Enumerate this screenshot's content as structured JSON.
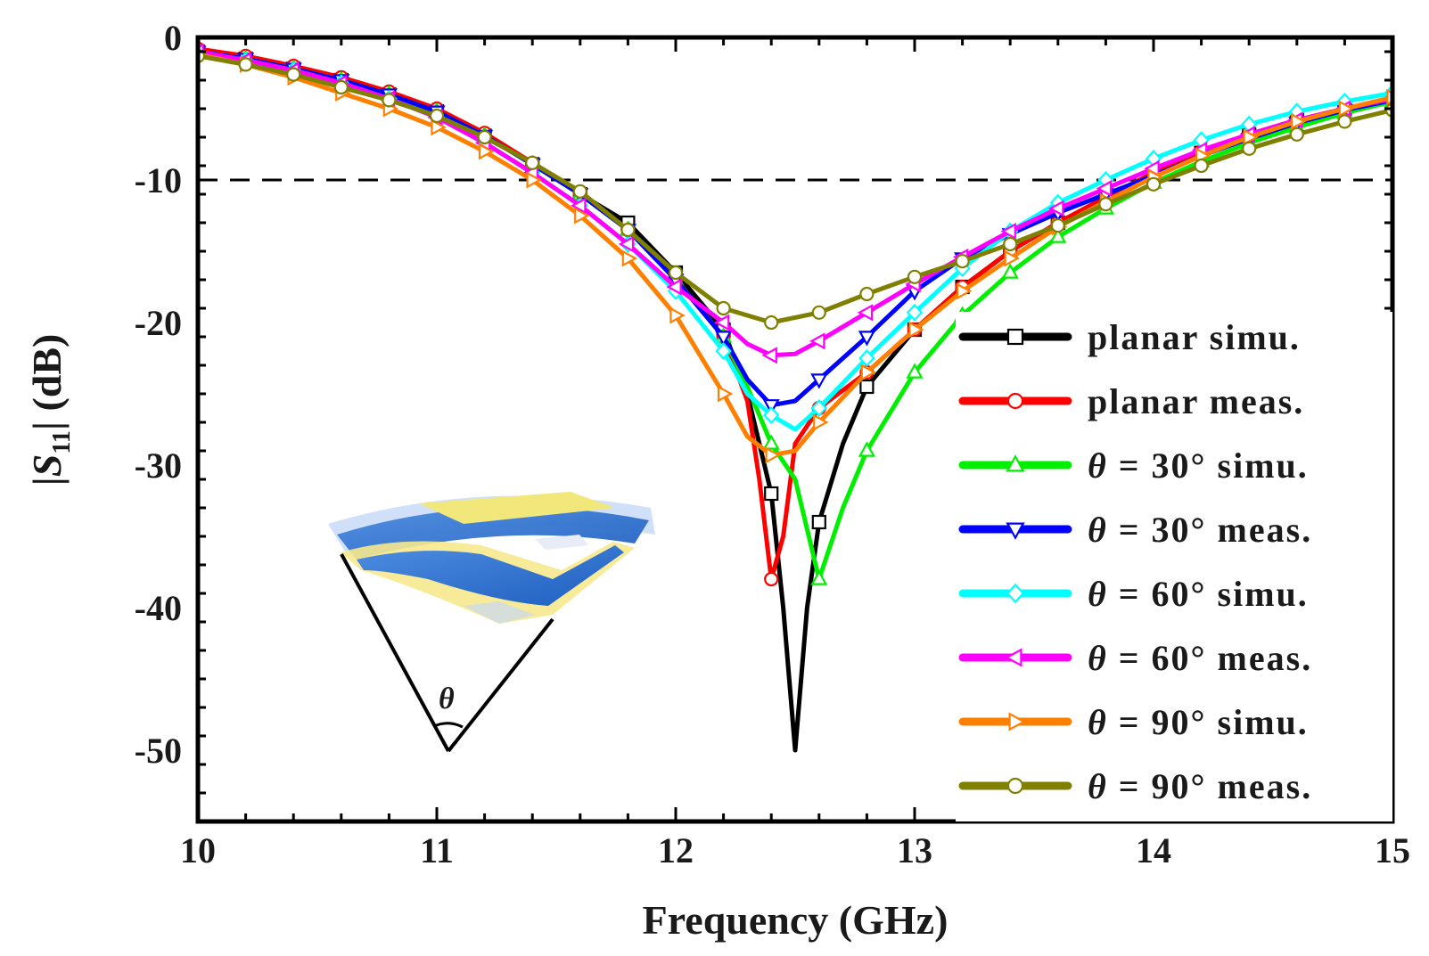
{
  "chart_data": {
    "type": "line",
    "xlabel": "Frequency (GHz)",
    "ylabel": {
      "prefix": "|",
      "var": "S",
      "sub": "11",
      "suffix": "| (dB)"
    },
    "xlim": [
      10,
      15
    ],
    "ylim": [
      -55,
      0
    ],
    "xticks": [
      10,
      11,
      12,
      13,
      14,
      15
    ],
    "yticks": [
      0,
      -10,
      -20,
      -30,
      -40,
      -50
    ],
    "xtick_labels": [
      "10",
      "11",
      "12",
      "13",
      "14",
      "15"
    ],
    "ytick_labels": [
      "0",
      "-10",
      "-20",
      "-30",
      "-40",
      "-50"
    ],
    "reference_line": {
      "y": -10,
      "style": "dashed"
    },
    "inset": {
      "description": "curved antenna illustration",
      "angle_label": "θ"
    },
    "series": [
      {
        "name": "planar simu.",
        "theta": "",
        "suffix": "planar simu.",
        "color": "#000000",
        "marker": "square",
        "x": [
          10,
          10.2,
          10.4,
          10.6,
          10.8,
          11,
          11.2,
          11.4,
          11.6,
          11.8,
          12,
          12.2,
          12.3,
          12.4,
          12.45,
          12.5,
          12.55,
          12.6,
          12.7,
          12.8,
          13,
          13.2,
          13.4,
          13.6,
          13.8,
          14,
          14.2,
          14.4,
          14.6,
          14.8,
          15
        ],
        "y": [
          -1.0,
          -1.5,
          -2.2,
          -3.0,
          -4.0,
          -5.2,
          -6.9,
          -8.9,
          -11.0,
          -13.0,
          -16.5,
          -20.5,
          -25.0,
          -32.0,
          -40.0,
          -50.0,
          -40.0,
          -34.0,
          -28.5,
          -24.5,
          -20.5,
          -17.5,
          -15.0,
          -13.0,
          -11.3,
          -9.6,
          -8.1,
          -6.8,
          -5.8,
          -5.0,
          -4.3
        ]
      },
      {
        "name": "planar meas.",
        "theta": "",
        "suffix": "planar meas.",
        "color": "#ff0000",
        "marker": "circle",
        "x": [
          10,
          10.2,
          10.4,
          10.6,
          10.8,
          11,
          11.2,
          11.4,
          11.6,
          11.8,
          12,
          12.2,
          12.3,
          12.35,
          12.4,
          12.45,
          12.5,
          12.6,
          12.8,
          13,
          13.2,
          13.4,
          13.6,
          13.8,
          14,
          14.2,
          14.4,
          14.6,
          14.8,
          15
        ],
        "y": [
          -0.8,
          -1.3,
          -2.0,
          -2.8,
          -3.8,
          -5.0,
          -6.7,
          -8.8,
          -11.0,
          -13.5,
          -17.0,
          -21.0,
          -25.5,
          -31.0,
          -38.0,
          -35.0,
          -28.5,
          -26.0,
          -23.5,
          -20.5,
          -17.5,
          -15.0,
          -13.0,
          -11.2,
          -9.5,
          -8.0,
          -6.9,
          -5.9,
          -5.0,
          -4.3
        ]
      },
      {
        "name": "θ = 30° simu.",
        "theta": "θ",
        "suffix": " = 30° simu.",
        "color": "#00ee00",
        "marker": "triangle-up",
        "x": [
          10,
          10.2,
          10.4,
          10.6,
          10.8,
          11,
          11.2,
          11.4,
          11.6,
          11.8,
          12,
          12.2,
          12.3,
          12.4,
          12.5,
          12.6,
          12.7,
          12.8,
          13,
          13.2,
          13.4,
          13.6,
          13.8,
          14,
          14.2,
          14.4,
          14.6,
          14.8,
          15
        ],
        "y": [
          -1.0,
          -1.5,
          -2.2,
          -3.0,
          -4.0,
          -5.2,
          -6.9,
          -8.9,
          -11.0,
          -13.5,
          -17.0,
          -21.0,
          -24.5,
          -28.5,
          -31.0,
          -38.0,
          -33.0,
          -29.0,
          -23.5,
          -19.5,
          -16.5,
          -14.0,
          -12.0,
          -10.2,
          -8.7,
          -7.4,
          -6.3,
          -5.3,
          -4.5
        ]
      },
      {
        "name": "θ = 30° meas.",
        "theta": "θ",
        "suffix": " = 30° meas.",
        "color": "#0000ff",
        "marker": "triangle-down",
        "x": [
          10,
          10.2,
          10.4,
          10.6,
          10.8,
          11,
          11.2,
          11.4,
          11.6,
          11.8,
          12,
          12.2,
          12.3,
          12.4,
          12.5,
          12.6,
          12.8,
          13,
          13.2,
          13.4,
          13.6,
          13.8,
          14,
          14.2,
          14.4,
          14.6,
          14.8,
          15
        ],
        "y": [
          -1.0,
          -1.5,
          -2.2,
          -3.0,
          -4.0,
          -5.2,
          -6.9,
          -8.9,
          -11.0,
          -13.5,
          -17.0,
          -21.0,
          -24.0,
          -25.8,
          -25.5,
          -24.0,
          -21.0,
          -17.8,
          -15.5,
          -13.8,
          -12.3,
          -11.0,
          -9.7,
          -8.3,
          -7.1,
          -6.0,
          -5.1,
          -4.4
        ]
      },
      {
        "name": "θ = 60° simu.",
        "theta": "θ",
        "suffix": " = 60° simu.",
        "color": "#00ffff",
        "marker": "diamond",
        "x": [
          10,
          10.2,
          10.4,
          10.6,
          10.8,
          11,
          11.2,
          11.4,
          11.6,
          11.8,
          12,
          12.2,
          12.3,
          12.4,
          12.5,
          12.6,
          12.8,
          13,
          13.2,
          13.4,
          13.6,
          13.8,
          14,
          14.2,
          14.4,
          14.6,
          14.8,
          15
        ],
        "y": [
          -1.0,
          -1.6,
          -2.3,
          -3.2,
          -4.3,
          -5.6,
          -7.4,
          -9.5,
          -11.8,
          -14.5,
          -17.8,
          -22.0,
          -25.0,
          -26.5,
          -27.5,
          -26.0,
          -22.5,
          -19.3,
          -16.2,
          -13.6,
          -11.6,
          -10.0,
          -8.5,
          -7.2,
          -6.1,
          -5.2,
          -4.5,
          -3.9
        ]
      },
      {
        "name": "θ = 60° meas.",
        "theta": "θ",
        "suffix": " = 60° meas.",
        "color": "#ff00ff",
        "marker": "triangle-left",
        "x": [
          10,
          10.2,
          10.4,
          10.6,
          10.8,
          11,
          11.2,
          11.4,
          11.6,
          11.8,
          12,
          12.2,
          12.3,
          12.4,
          12.5,
          12.6,
          12.8,
          13,
          13.2,
          13.4,
          13.6,
          13.8,
          14,
          14.2,
          14.4,
          14.6,
          14.8,
          15
        ],
        "y": [
          -1.0,
          -1.6,
          -2.3,
          -3.2,
          -4.3,
          -5.6,
          -7.4,
          -9.5,
          -11.8,
          -14.5,
          -17.5,
          -20.0,
          -21.5,
          -22.3,
          -22.2,
          -21.3,
          -19.3,
          -17.3,
          -15.4,
          -13.6,
          -12.0,
          -10.6,
          -9.2,
          -7.9,
          -6.8,
          -5.8,
          -5.0,
          -4.3
        ]
      },
      {
        "name": "θ = 90° simu.",
        "theta": "θ",
        "suffix": " = 90° simu.",
        "color": "#ff7f00",
        "marker": "triangle-right",
        "x": [
          10,
          10.2,
          10.4,
          10.6,
          10.8,
          11,
          11.2,
          11.4,
          11.6,
          11.8,
          12,
          12.2,
          12.3,
          12.4,
          12.5,
          12.6,
          12.8,
          13,
          13.2,
          13.4,
          13.6,
          13.8,
          14,
          14.2,
          14.4,
          14.6,
          14.8,
          15
        ],
        "y": [
          -1.2,
          -1.9,
          -2.8,
          -3.9,
          -5.0,
          -6.3,
          -8.0,
          -10.0,
          -12.5,
          -15.5,
          -19.5,
          -25.0,
          -28.0,
          -29.3,
          -29.0,
          -27.0,
          -23.5,
          -20.5,
          -17.8,
          -15.5,
          -13.3,
          -11.5,
          -9.8,
          -8.3,
          -7.0,
          -5.9,
          -5.0,
          -4.2
        ]
      },
      {
        "name": "θ = 90° meas.",
        "theta": "θ",
        "suffix": " = 90° meas.",
        "color": "#808000",
        "marker": "circle",
        "x": [
          10,
          10.2,
          10.4,
          10.6,
          10.8,
          11,
          11.2,
          11.4,
          11.6,
          11.8,
          12,
          12.2,
          12.4,
          12.6,
          12.8,
          13,
          13.2,
          13.4,
          13.6,
          13.8,
          14,
          14.2,
          14.4,
          14.6,
          14.8,
          15
        ],
        "y": [
          -1.3,
          -1.9,
          -2.6,
          -3.5,
          -4.4,
          -5.5,
          -7.0,
          -8.8,
          -10.8,
          -13.5,
          -16.5,
          -19.0,
          -20.0,
          -19.3,
          -18.0,
          -16.8,
          -15.7,
          -14.5,
          -13.2,
          -11.7,
          -10.3,
          -9.0,
          -7.8,
          -6.8,
          -5.9,
          -5.1
        ]
      }
    ]
  }
}
